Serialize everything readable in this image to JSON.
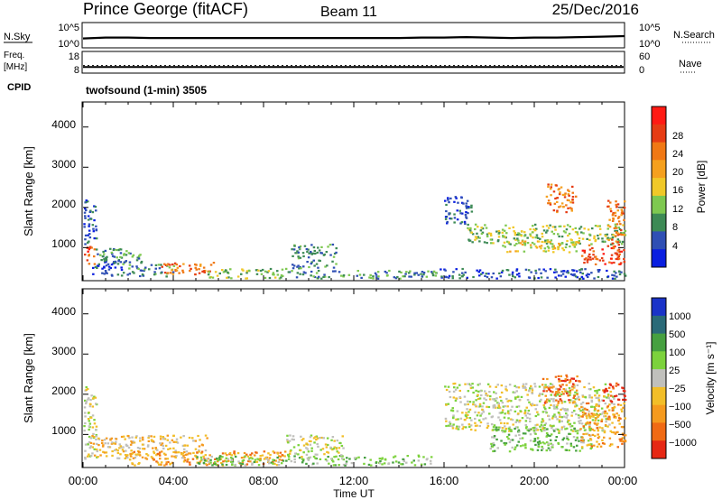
{
  "header": {
    "station": "Prince George (fitACF)",
    "beam": "Beam 11",
    "date": "25/Dec/2016"
  },
  "top_panels": {
    "nsky_label": "N.Sky",
    "nsky_ticks": [
      "10^5",
      "10^0"
    ],
    "nsearch_label": "N.Search",
    "nsearch_ticks": [
      "10^5",
      "10^0"
    ],
    "freq_label_1": "Freq.",
    "freq_label_2": "[MHz]",
    "freq_ticks": [
      "18",
      "8"
    ],
    "nave_label": "Nave",
    "nave_ticks": [
      "60",
      "0"
    ],
    "cpid_label": "CPID",
    "cpid_text": "twofsound (1-min) 3505"
  },
  "axes": {
    "ylabel": "Slant Range [km]",
    "y_ticks": [
      "1000",
      "2000",
      "3000",
      "4000"
    ],
    "x_ticks": [
      "00:00",
      "04:00",
      "08:00",
      "12:00",
      "16:00",
      "20:00",
      "00:00"
    ],
    "xlabel": "Time UT"
  },
  "colorbars": {
    "power_label": "Power [dB]",
    "power_ticks": [
      "4",
      "8",
      "12",
      "16",
      "20",
      "24",
      "28"
    ],
    "power_colors": [
      "#0a1fe0",
      "#2f4fb4",
      "#3d8a55",
      "#7ec850",
      "#f0c828",
      "#f5a01e",
      "#f07814",
      "#e63c14",
      "#ff1a14"
    ],
    "velocity_label": "Velocity [m s⁻¹]",
    "velocity_ticks": [
      "1000",
      "500",
      "100",
      "25",
      "−25",
      "−100",
      "−500",
      "−1000"
    ],
    "velocity_colors": [
      "#1a33c8",
      "#2a6a78",
      "#46a040",
      "#7cd23c",
      "#c0c0bc",
      "#f2be28",
      "#f59a1e",
      "#f06a14",
      "#e62814"
    ]
  },
  "chart_data": {
    "type": "heatmap",
    "x_range_hours": [
      0,
      24
    ],
    "y_range_km": [
      200,
      4600
    ],
    "nsky_series": [
      1.8,
      2.0,
      2.0,
      1.9,
      1.9,
      1.9,
      1.9,
      1.9,
      1.9,
      1.9,
      1.9,
      1.9,
      1.9,
      1.9,
      1.9,
      2.0,
      2.0,
      2.1,
      2.0,
      1.9,
      2.0,
      2.0,
      2.1,
      2.2,
      2.3
    ],
    "freq_mhz": 10.6,
    "nave": 20,
    "power_echoes": [
      {
        "t0": 0.0,
        "t1": 0.5,
        "r0": 600,
        "r1": 1100,
        "level": 7
      },
      {
        "t0": 0.0,
        "t1": 0.6,
        "r0": 1100,
        "r1": 2200,
        "level": 1
      },
      {
        "t0": 0.5,
        "t1": 2.6,
        "r0": 600,
        "r1": 1000,
        "level": 2
      },
      {
        "t0": 0.4,
        "t1": 2.0,
        "r0": 300,
        "r1": 700,
        "level": 1
      },
      {
        "t0": 2.0,
        "t1": 4.0,
        "r0": 300,
        "r1": 600,
        "level": 2
      },
      {
        "t0": 3.4,
        "t1": 5.8,
        "r0": 350,
        "r1": 650,
        "level": 6
      },
      {
        "t0": 5.5,
        "t1": 9.0,
        "r0": 250,
        "r1": 500,
        "level": 3
      },
      {
        "t0": 9.0,
        "t1": 15.8,
        "r0": 250,
        "r1": 450,
        "level": 2
      },
      {
        "t0": 9.2,
        "t1": 11.2,
        "r0": 500,
        "r1": 1100,
        "level": 2
      },
      {
        "t0": 16.0,
        "t1": 17.2,
        "r0": 1600,
        "r1": 2300,
        "level": 1
      },
      {
        "t0": 17.0,
        "t1": 24.0,
        "r0": 1100,
        "r1": 1600,
        "level": 3
      },
      {
        "t0": 18.5,
        "t1": 22.0,
        "r0": 900,
        "r1": 1200,
        "level": 4
      },
      {
        "t0": 20.5,
        "t1": 21.8,
        "r0": 1900,
        "r1": 2600,
        "level": 6
      },
      {
        "t0": 22.0,
        "t1": 24.0,
        "r0": 600,
        "r1": 1100,
        "level": 7
      },
      {
        "t0": 23.2,
        "t1": 24.0,
        "r0": 1100,
        "r1": 2200,
        "level": 6
      },
      {
        "t0": 15.8,
        "t1": 24.0,
        "r0": 250,
        "r1": 500,
        "level": 1
      }
    ],
    "velocity_echoes": [
      {
        "t0": 0.0,
        "t1": 0.6,
        "r0": 400,
        "r1": 2200,
        "level": 4
      },
      {
        "t0": 0.3,
        "t1": 5.5,
        "r0": 400,
        "r1": 1000,
        "level": 5
      },
      {
        "t0": 2.0,
        "t1": 9.0,
        "r0": 250,
        "r1": 600,
        "level": 6
      },
      {
        "t0": 5.0,
        "t1": 15.5,
        "r0": 250,
        "r1": 500,
        "level": 3
      },
      {
        "t0": 9.0,
        "t1": 11.5,
        "r0": 400,
        "r1": 1000,
        "level": 4
      },
      {
        "t0": 16.0,
        "t1": 23.5,
        "r0": 1100,
        "r1": 2300,
        "level": 4
      },
      {
        "t0": 18.0,
        "t1": 22.5,
        "r0": 600,
        "r1": 1200,
        "level": 3
      },
      {
        "t0": 20.3,
        "t1": 22.0,
        "r0": 1800,
        "r1": 2500,
        "level": 7
      },
      {
        "t0": 22.0,
        "t1": 24.0,
        "r0": 700,
        "r1": 1800,
        "level": 6
      },
      {
        "t0": 23.0,
        "t1": 24.0,
        "r0": 1800,
        "r1": 2300,
        "level": 8
      }
    ]
  }
}
